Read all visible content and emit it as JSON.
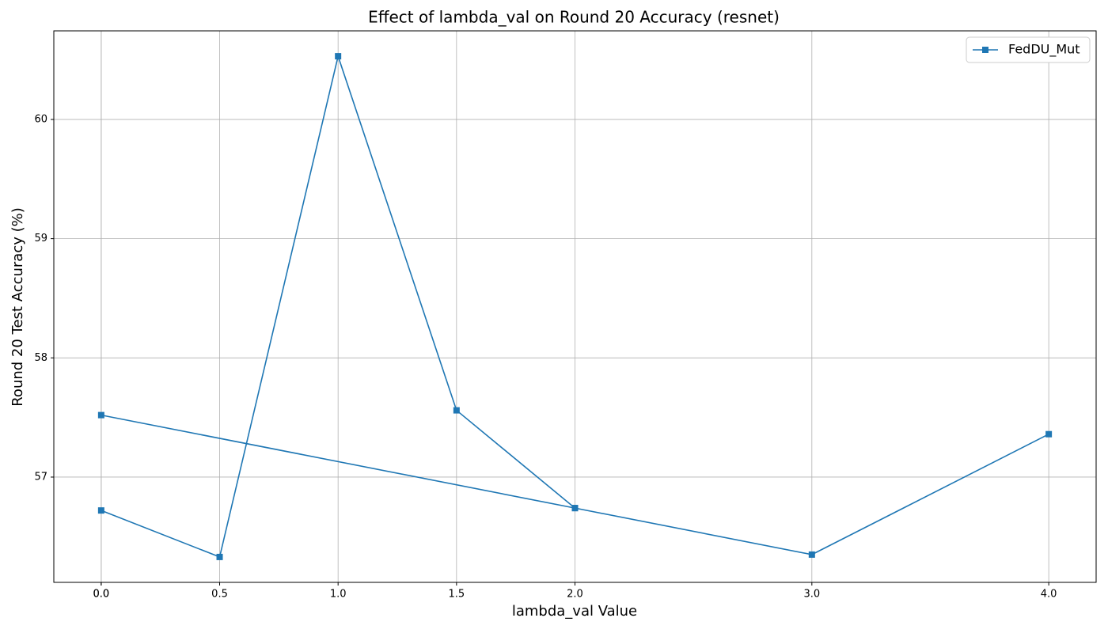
{
  "chart_data": {
    "type": "line",
    "title": "Effect of lambda_val on Round 20 Accuracy (resnet)",
    "x_label": "lambda_val Value",
    "y_label": "Round 20 Test Accuracy (%)",
    "x": [
      0.0,
      0.5,
      1.0,
      1.5,
      2.0,
      0.0,
      2.0,
      3.0,
      4.0
    ],
    "series": [
      {
        "name": "FedDU_Mut",
        "color": "#1f77b4",
        "values": [
          56.72,
          56.33,
          60.53,
          57.56,
          56.74,
          57.52,
          56.74,
          56.35,
          57.36
        ]
      }
    ],
    "xlim": [
      -0.2,
      4.2
    ],
    "xticks": [
      {
        "value": 0,
        "label": "0.0"
      },
      {
        "value": 0,
        "label": "0.0"
      },
      0.5,
      {
        "value": 1,
        "label": "1.0"
      },
      1.5,
      {
        "value": 2,
        "label": "2.0"
      },
      {
        "value": 3,
        "label": "3.0"
      },
      {
        "value": 4,
        "label": "4.0"
      }
    ],
    "ylim": [
      56.117,
      60.743
    ],
    "yticks": [
      57,
      58,
      59,
      60
    ],
    "grid": true,
    "legend": "upper right"
  }
}
